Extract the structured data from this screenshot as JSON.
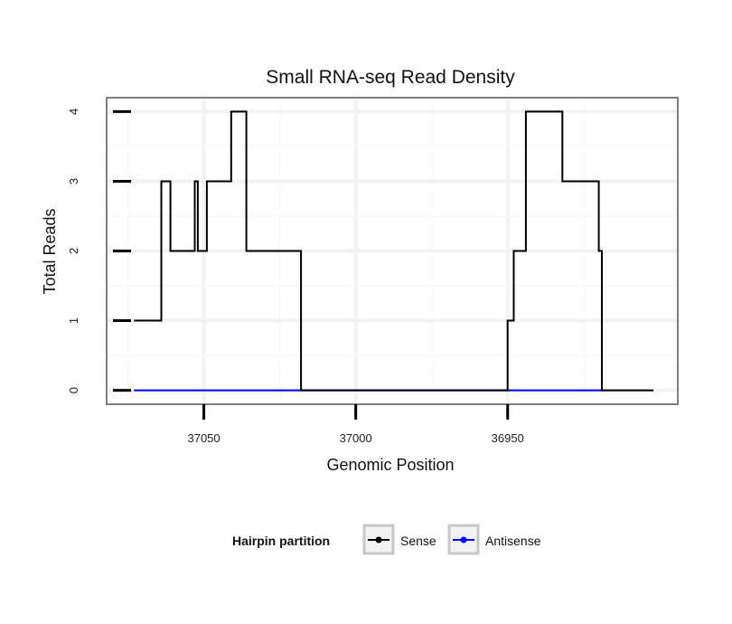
{
  "chart_data": {
    "type": "line",
    "title": "Small RNA-seq Read Density",
    "xlabel": "Genomic Position",
    "ylabel": "Total Reads",
    "x_reversed": true,
    "xlim": [
      37082,
      36894
    ],
    "ylim": [
      -0.2,
      4.2
    ],
    "x_ticks": [
      37050,
      37000,
      36950
    ],
    "x_tick_labels": [
      "37050",
      "37000",
      "36950"
    ],
    "y_ticks": [
      0,
      1,
      2,
      3,
      4
    ],
    "y_tick_labels": [
      "0",
      "1",
      "2",
      "3",
      "4"
    ],
    "grid": true,
    "legend": {
      "title": "Hairpin partition",
      "position": "bottom"
    },
    "series": [
      {
        "name": "Sense",
        "color": "#000000",
        "x": [
          37073,
          37064,
          37064,
          37061,
          37061,
          37053,
          37053,
          37052,
          37052,
          37049,
          37049,
          37041,
          37041,
          37036,
          37036,
          37031,
          37031,
          37030,
          37030,
          37018,
          37018,
          36950,
          36950,
          36948,
          36948,
          36946,
          36946,
          36944,
          36944,
          36932,
          36932,
          36920,
          36920,
          36919,
          36919,
          36917,
          36917,
          36902
        ],
        "y": [
          1,
          1,
          3,
          3,
          2,
          2,
          3,
          3,
          2,
          2,
          3,
          3,
          4,
          4,
          2,
          2,
          2,
          2,
          2,
          2,
          0,
          0,
          1,
          1,
          2,
          2,
          2,
          2,
          4,
          4,
          3,
          3,
          2,
          2,
          0,
          0,
          0,
          0
        ]
      },
      {
        "name": "Antisense",
        "color": "#0000ff",
        "x": [
          37073,
          36918
        ],
        "y": [
          0,
          0
        ]
      }
    ]
  }
}
